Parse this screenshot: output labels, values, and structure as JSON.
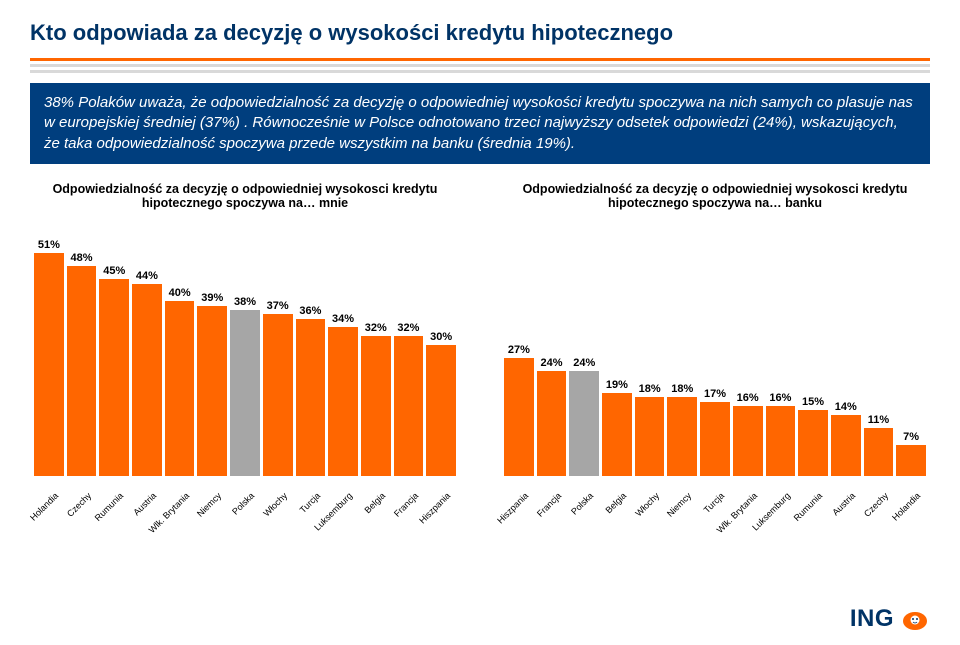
{
  "title": "Kto odpowiada za decyzję o wysokości kredytu hipotecznego",
  "description": "38% Polaków uważa, że odpowiedzialność za decyzję o odpowiedniej wysokości kredytu spoczywa  na nich samych co plasuje nas w europejskiej średniej (37%) . Równocześnie w Polsce odnotowano trzeci najwyższy odsetek odpowiedzi (24%), wskazujących, że taka odpowiedzialność spoczywa przede wszystkim na banku (średnia 19%).",
  "chart_left": {
    "title": "Odpowiedzialność za decyzję o odpowiedniej wysokosci kredytu hipotecznego spoczywa na… mnie",
    "type": "bar",
    "max_value": 55,
    "bar_color": "#ff6600",
    "highlight_color": "#a6a6a6",
    "value_fontsize": 11,
    "label_fontsize": 9,
    "categories": [
      "Holandia",
      "Czechy",
      "Rumunia",
      "Austria",
      "Wlk. Brytania",
      "Niemcy",
      "Polska",
      "Włochy",
      "Turcja",
      "Luksemburg",
      "Belgia",
      "Francja",
      "Hiszpania"
    ],
    "values": [
      51,
      48,
      45,
      44,
      40,
      39,
      38,
      37,
      36,
      34,
      32,
      32,
      30
    ],
    "highlight_index": 6
  },
  "chart_right": {
    "title": "Odpowiedzialność za decyzję o odpowiedniej wysokosci kredytu hipotecznego spoczywa na… banku",
    "type": "bar",
    "max_value": 55,
    "bar_color": "#ff6600",
    "highlight_color": "#a6a6a6",
    "value_fontsize": 11,
    "label_fontsize": 9,
    "categories": [
      "Hiszpania",
      "Francja",
      "Polska",
      "Belgia",
      "Włochy",
      "Niemcy",
      "Turcja",
      "Wlk. Brytania",
      "Luksemburg",
      "Rumunia",
      "Austria",
      "Czechy",
      "Holandia"
    ],
    "values": [
      27,
      24,
      24,
      19,
      18,
      18,
      17,
      16,
      16,
      15,
      14,
      11,
      7
    ],
    "highlight_index": 2
  },
  "logo": {
    "text": "ING",
    "lion_color": "#ff6600"
  }
}
